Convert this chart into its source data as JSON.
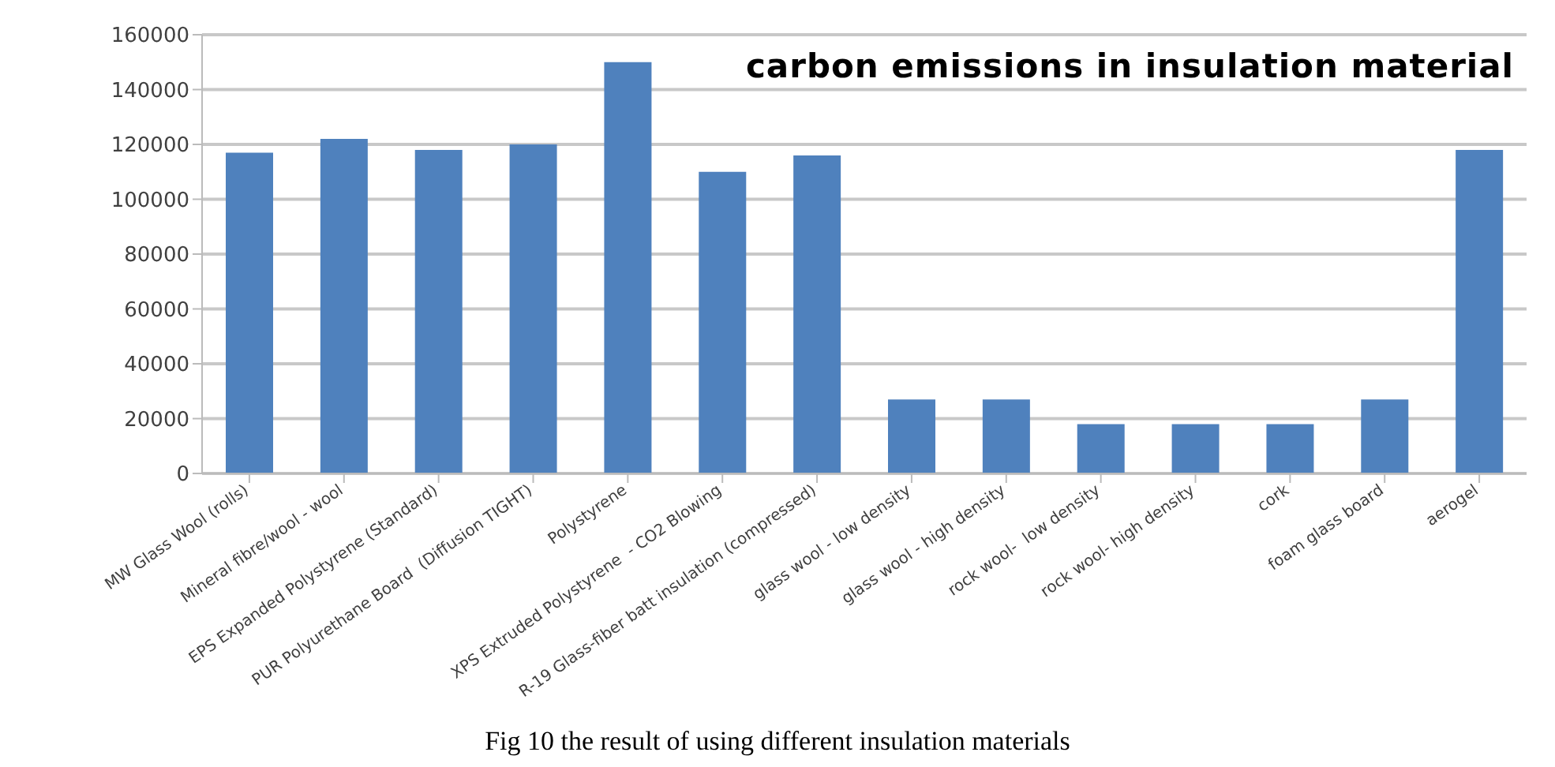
{
  "chart_data": {
    "type": "bar",
    "title": "carbon emissions in insulation material",
    "categories": [
      "MW Glass Wool (rolls)",
      "Mineral fibre/wool - wool",
      "EPS Expanded Polystyrene (Standard)",
      "PUR Polyurethane Board  (Diffusion TIGHT)",
      "Polystyrene",
      "XPS Extruded Polystyrene  - CO2 Blowing",
      "R-19 Glass-fiber batt insulation (compressed)",
      "glass wool - low density",
      "glass wool - high density",
      "rock wool-  low density",
      "rock wool- high density",
      "cork",
      "foam glass board",
      "aerogel"
    ],
    "values": [
      117000,
      122000,
      118000,
      120000,
      150000,
      110000,
      116000,
      27000,
      27000,
      18000,
      18000,
      18000,
      27000,
      118000
    ],
    "color": "#4f81bd",
    "ylim": [
      0,
      160000
    ],
    "yticks": [
      0,
      20000,
      40000,
      60000,
      80000,
      100000,
      120000,
      140000,
      160000
    ],
    "grid": "y",
    "annotations": [
      "Fig 10 the result of using different insulation materials"
    ]
  }
}
